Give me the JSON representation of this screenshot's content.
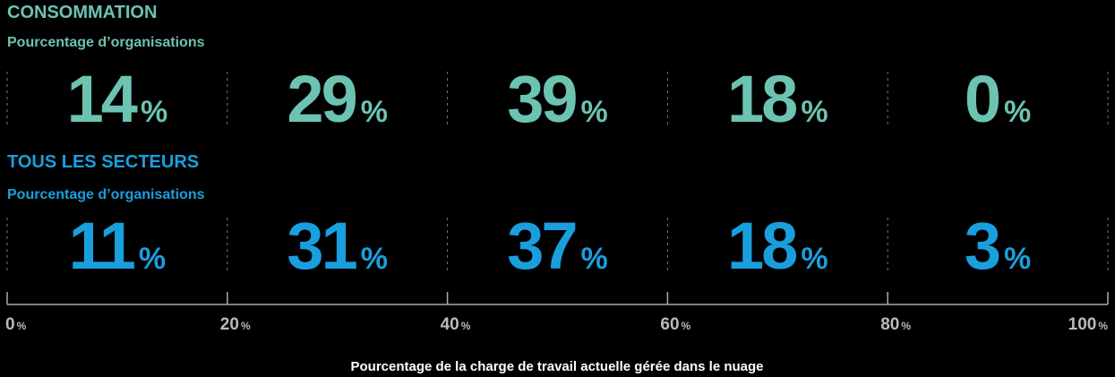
{
  "chart_data": {
    "type": "percent-grid",
    "unit": "%",
    "series": [
      {
        "name": "CONSOMMATION",
        "subtitle": "Pourcentage d’organisations",
        "color": "#6cc3b1",
        "values": [
          14,
          29,
          39,
          18,
          0
        ]
      },
      {
        "name": "TOUS LES SECTEURS",
        "subtitle": "Pourcentage d’organisations",
        "color": "#1a9fde",
        "values": [
          11,
          31,
          37,
          18,
          3
        ]
      }
    ],
    "xlim": [
      0,
      100
    ],
    "xticks": [
      0,
      20,
      40,
      60,
      80,
      100
    ],
    "xlabel": "Pourcentage de la charge de travail actuelle gérée dans le nuage"
  }
}
